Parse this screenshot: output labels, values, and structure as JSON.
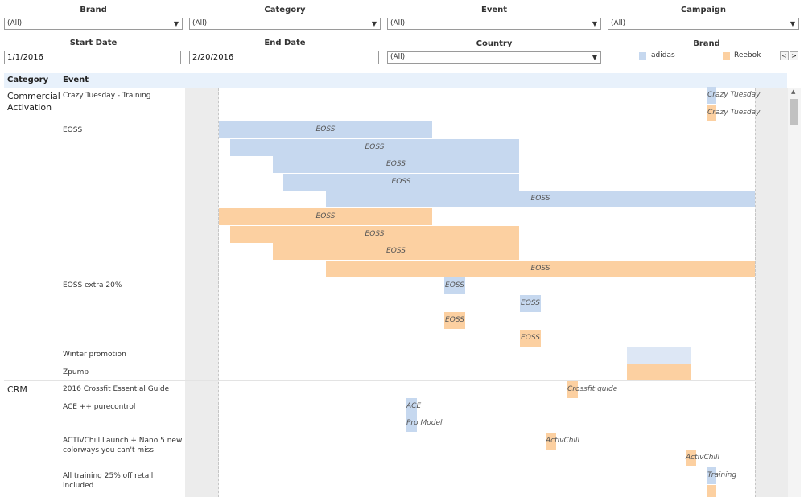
{
  "filters": {
    "brand": {
      "label": "Brand",
      "value": "(All)"
    },
    "category": {
      "label": "Category",
      "value": "(All)"
    },
    "event": {
      "label": "Event",
      "value": "(All)"
    },
    "campaign": {
      "label": "Campaign",
      "value": "(All)"
    },
    "start_date": {
      "label": "Start Date",
      "value": "1/1/2016"
    },
    "end_date": {
      "label": "End Date",
      "value": "2/20/2016"
    },
    "country": {
      "label": "Country",
      "value": "(All)"
    }
  },
  "legend": {
    "title": "Brand",
    "items": [
      {
        "label": "adidas",
        "color": "#c6d8ef"
      },
      {
        "label": "Reebok",
        "color": "#fcd0a1"
      }
    ],
    "prev": "<",
    "next": ">"
  },
  "table": {
    "col_category": "Category",
    "col_event": "Event",
    "categories": [
      {
        "name": "Commercial Activation"
      },
      {
        "name": "CRM"
      }
    ],
    "events": [
      "Crazy Tuesday - Training",
      "EOSS",
      "EOSS extra 20%",
      "Winter promotion",
      "Zpump",
      "2016 Crossfit Essential Guide",
      "ACE ++ purecontrol",
      "ACTIVChill Launch + Nano 5 new colorways you can't miss",
      "All training 25% off retail included"
    ],
    "bars": [
      {
        "label": "Crazy Tuesday",
        "brand": "adidas"
      },
      {
        "label": "Crazy Tuesday",
        "brand": "Reebok"
      },
      {
        "label": "EOSS",
        "brand": "adidas"
      },
      {
        "label": "EOSS",
        "brand": "adidas"
      },
      {
        "label": "EOSS",
        "brand": "adidas"
      },
      {
        "label": "EOSS",
        "brand": "adidas"
      },
      {
        "label": "EOSS",
        "brand": "adidas"
      },
      {
        "label": "EOSS",
        "brand": "Reebok"
      },
      {
        "label": "EOSS",
        "brand": "Reebok"
      },
      {
        "label": "EOSS",
        "brand": "Reebok"
      },
      {
        "label": "EOSS",
        "brand": "Reebok"
      },
      {
        "label": "EOSS",
        "brand": "adidas"
      },
      {
        "label": "EOSS",
        "brand": "adidas"
      },
      {
        "label": "EOSS",
        "brand": "Reebok"
      },
      {
        "label": "EOSS",
        "brand": "Reebok"
      },
      {
        "label": "",
        "brand": "adidas"
      },
      {
        "label": "",
        "brand": "Reebok"
      },
      {
        "label": "Crossfit guide",
        "brand": "Reebok"
      },
      {
        "label": "ACE",
        "brand": "adidas"
      },
      {
        "label": "Pro Model",
        "brand": "adidas"
      },
      {
        "label": "ActivChill",
        "brand": "Reebok"
      },
      {
        "label": "ActivChill",
        "brand": "Reebok"
      },
      {
        "label": "Training",
        "brand": "adidas"
      },
      {
        "label": "",
        "brand": "Reebok"
      }
    ]
  }
}
